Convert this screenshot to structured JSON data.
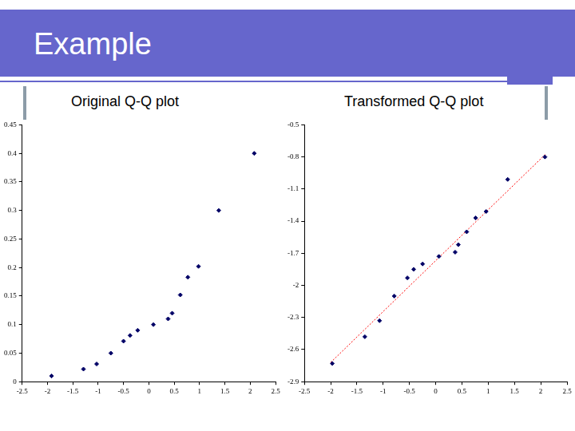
{
  "title": "Example",
  "chart_data": [
    {
      "type": "scatter",
      "title": "Original Q-Q plot",
      "xlim": [
        -2.5,
        2.5
      ],
      "xticks": [
        -2.5,
        -2,
        -1.5,
        -1,
        -0.5,
        0,
        0.5,
        1,
        1.5,
        2,
        2.5
      ],
      "ylim": [
        0,
        0.45
      ],
      "yticks": [
        0,
        0.05,
        0.1,
        0.15,
        0.2,
        0.25,
        0.3,
        0.35,
        0.4,
        0.45
      ],
      "grid": false,
      "series": [
        {
          "color": "#000066",
          "marker": "diamond",
          "x": [
            -1.92,
            -1.29,
            -1.03,
            -0.75,
            -0.5,
            -0.37,
            -0.22,
            0.09,
            0.38,
            0.46,
            0.62,
            0.77,
            0.98,
            1.38,
            2.08
          ],
          "values": [
            0.01,
            0.022,
            0.031,
            0.05,
            0.071,
            0.081,
            0.09,
            0.1,
            0.11,
            0.12,
            0.152,
            0.183,
            0.202,
            0.3,
            0.4
          ]
        }
      ]
    },
    {
      "type": "scatter",
      "title": "Transformed Q-Q plot",
      "xlim": [
        -2.5,
        2.5
      ],
      "xticks": [
        -2.5,
        -2,
        -1.5,
        -1,
        -0.5,
        0,
        0.5,
        1,
        1.5,
        2,
        2.5
      ],
      "ylim": [
        -2.9,
        -0.5
      ],
      "yticks": [
        -2.9,
        -2.6,
        -2.3,
        -2,
        -1.7,
        -1.4,
        -1.1,
        -0.8,
        -0.5
      ],
      "grid": false,
      "series": [
        {
          "color": "#000066",
          "marker": "diamond",
          "x": [
            -1.97,
            -1.35,
            -1.07,
            -0.79,
            -0.54,
            -0.42,
            -0.25,
            0.06,
            0.37,
            0.43,
            0.59,
            0.76,
            0.96,
            1.37,
            2.08
          ],
          "values": [
            -2.73,
            -2.48,
            -2.33,
            -2.1,
            -1.93,
            -1.85,
            -1.8,
            -1.73,
            -1.69,
            -1.62,
            -1.5,
            -1.37,
            -1.31,
            -1.01,
            -0.8
          ]
        },
        {
          "type": "line",
          "color": "#ff0000",
          "line_style": "dotted",
          "x": [
            -2,
            2.1
          ],
          "values": [
            -2.72,
            -0.77
          ]
        }
      ]
    }
  ]
}
